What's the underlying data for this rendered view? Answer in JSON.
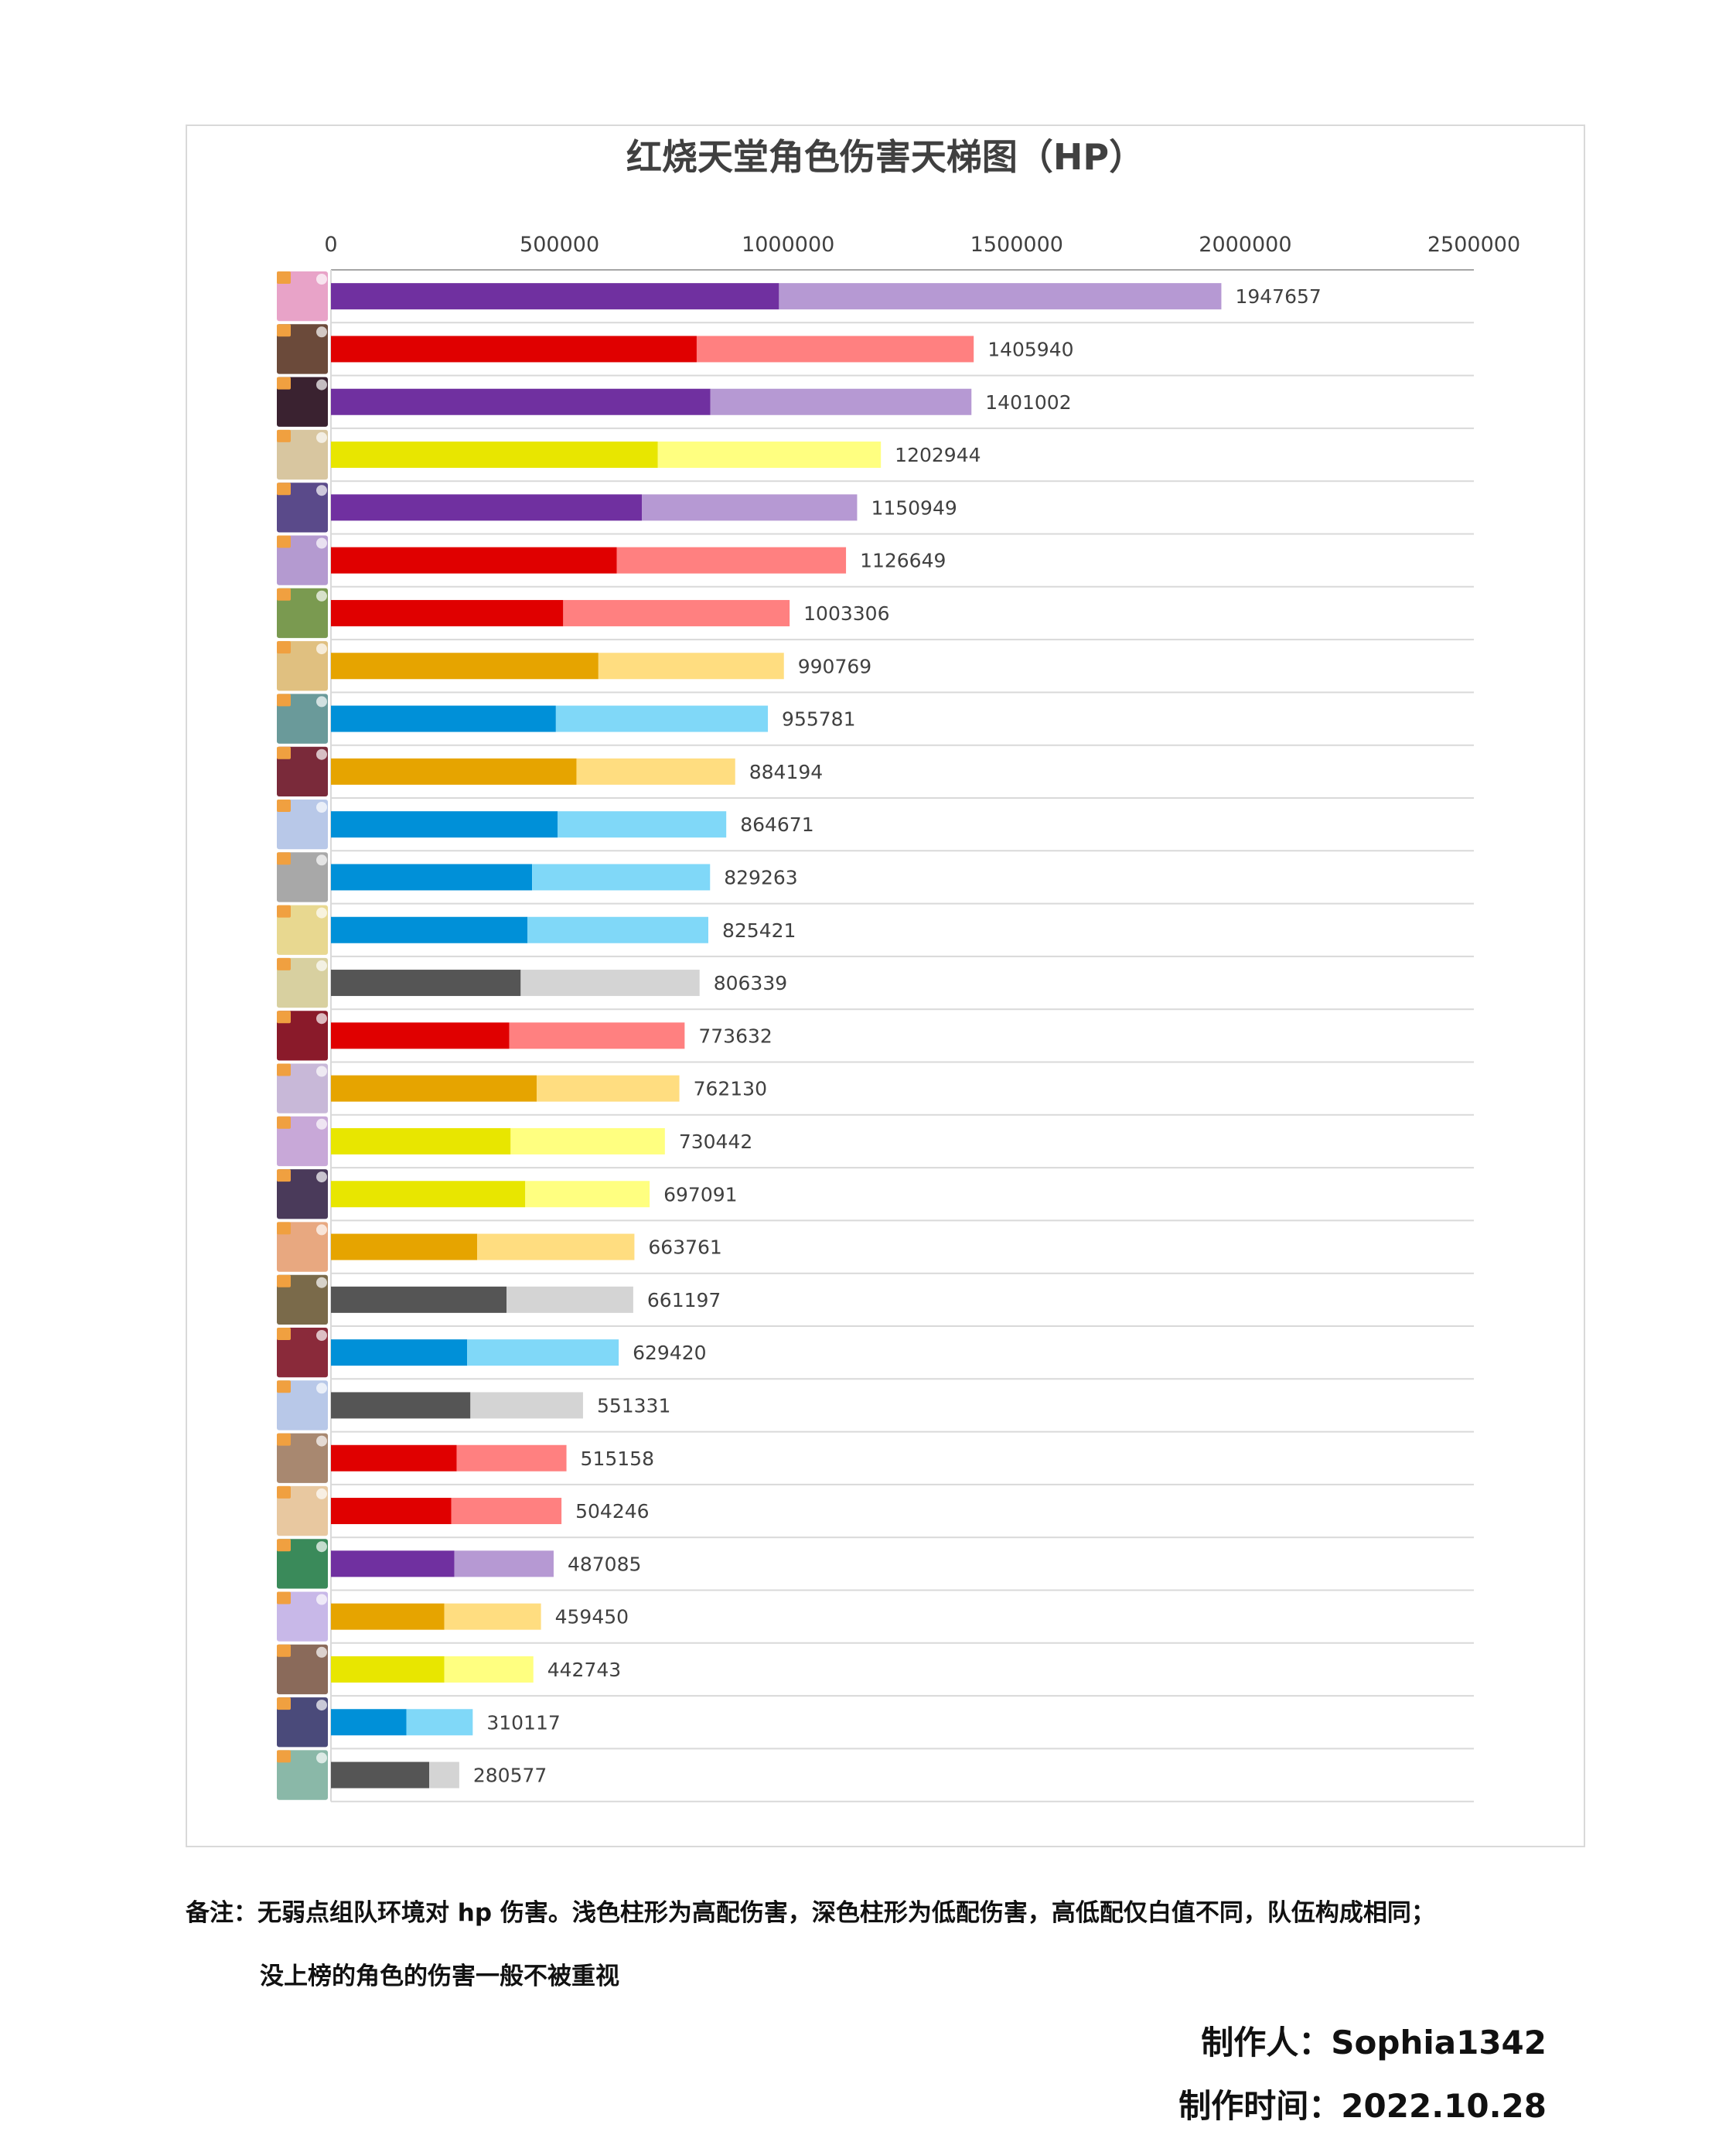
{
  "chart_data": {
    "type": "bar",
    "orientation": "horizontal",
    "stacked": true,
    "title": "红烧天堂角色伤害天梯图（HP）",
    "xlabel": "",
    "ylabel": "",
    "xlim": [
      0,
      2500000
    ],
    "x_ticks": [
      "0",
      "500000",
      "1000000",
      "1500000",
      "2000000",
      "2500000"
    ],
    "axis_position": "top",
    "grid": true,
    "categories_are_character_portraits": true,
    "totals": [
      1947657,
      1405940,
      1401002,
      1202944,
      1150949,
      1126649,
      1003306,
      990769,
      955781,
      884194,
      864671,
      829263,
      825421,
      806339,
      773632,
      762130,
      730442,
      697091,
      663761,
      661197,
      629420,
      551331,
      515158,
      504246,
      487085,
      459450,
      442743,
      310117,
      280577
    ],
    "series": [
      {
        "values": [
          980000,
          800000,
          830000,
          715000,
          680000,
          625000,
          508000,
          585000,
          492000,
          537000,
          496000,
          440000,
          430000,
          415000,
          390000,
          450000,
          393000,
          425000,
          320000,
          384000,
          298000,
          305000,
          275000,
          263000,
          270000,
          248000,
          248000,
          165000,
          215000
        ]
      },
      {
        "values": [
          967657,
          605940,
          571002,
          487944,
          470949,
          501649,
          495306,
          405769,
          463781,
          347194,
          368671,
          389263,
          395421,
          391339,
          383632,
          312130,
          337442,
          272091,
          343761,
          277197,
          331420,
          246331,
          240158,
          241246,
          217085,
          211450,
          194743,
          145117,
          65577
        ]
      }
    ],
    "bar_colors": [
      [
        "#7030a0",
        "#b699d3"
      ],
      [
        "#e00000",
        "#ff8080"
      ],
      [
        "#7030a0",
        "#b699d3"
      ],
      [
        "#e8e600",
        "#ffff80"
      ],
      [
        "#7030a0",
        "#b699d3"
      ],
      [
        "#e00000",
        "#ff8080"
      ],
      [
        "#e00000",
        "#ff8080"
      ],
      [
        "#e6a400",
        "#ffdd80"
      ],
      [
        "#0090d8",
        "#80d8f8"
      ],
      [
        "#e6a400",
        "#ffdd80"
      ],
      [
        "#0090d8",
        "#80d8f8"
      ],
      [
        "#0090d8",
        "#80d8f8"
      ],
      [
        "#0090d8",
        "#80d8f8"
      ],
      [
        "#555555",
        "#d4d4d4"
      ],
      [
        "#e00000",
        "#ff8080"
      ],
      [
        "#e6a400",
        "#ffdd80"
      ],
      [
        "#e8e600",
        "#ffff80"
      ],
      [
        "#e8e600",
        "#ffff80"
      ],
      [
        "#e6a400",
        "#ffdd80"
      ],
      [
        "#555555",
        "#d4d4d4"
      ],
      [
        "#0090d8",
        "#80d8f8"
      ],
      [
        "#555555",
        "#d4d4d4"
      ],
      [
        "#e00000",
        "#ff8080"
      ],
      [
        "#e00000",
        "#ff8080"
      ],
      [
        "#7030a0",
        "#b699d3"
      ],
      [
        "#e6a400",
        "#ffdd80"
      ],
      [
        "#e8e600",
        "#ffff80"
      ],
      [
        "#0090d8",
        "#80d8f8"
      ],
      [
        "#555555",
        "#d4d4d4"
      ]
    ],
    "portrait_colors": [
      "#e8a3c8",
      "#6b4a3a",
      "#3a2230",
      "#d8c6a0",
      "#5a4a8a",
      "#b49ad0",
      "#7a9a50",
      "#e0c080",
      "#6a9a9a",
      "#7a2a3a",
      "#b8c8e8",
      "#a8a8a8",
      "#e8d890",
      "#d8d0a0",
      "#8a1a2a",
      "#c8b8d8",
      "#c8a8d8",
      "#4a3a5a",
      "#e8a880",
      "#7a6a4a",
      "#8a2a3a",
      "#b8c8e8",
      "#a88870",
      "#e8c8a0",
      "#3a8a5a",
      "#c8b8e8",
      "#8a6a5a",
      "#4a4a7a",
      "#8ab8a8"
    ]
  },
  "notes": {
    "line1": "备注：无弱点组队环境对 hp 伤害。浅色柱形为高配伤害，深色柱形为低配伤害，高低配仅白值不同，队伍构成相同；",
    "line2": "没上榜的角色的伤害一般不被重视"
  },
  "credits": {
    "author": "制作人：Sophia1342",
    "date": "制作时间：2022.10.28"
  }
}
